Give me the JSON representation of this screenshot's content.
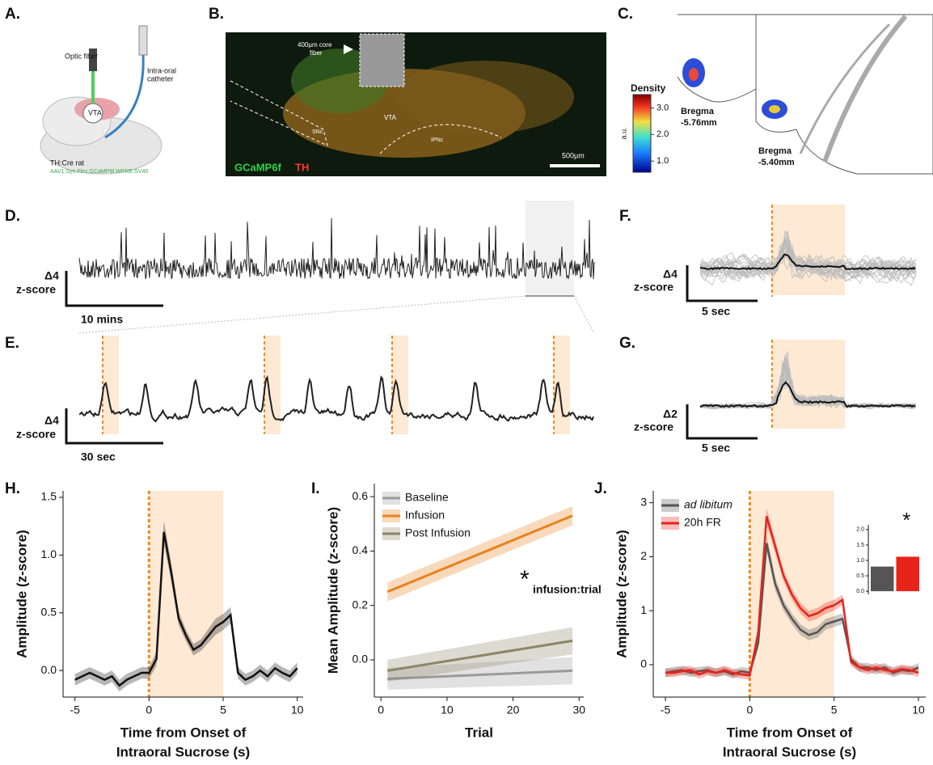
{
  "panels": {
    "A": {
      "label": "A.",
      "optic_fiber": "Optic fiber",
      "catheter": [
        "Intra-oral",
        "catheter"
      ],
      "region": "VTA",
      "rat": "TH:Cre rat",
      "virus": "AAV1.Syn.Flex.GCaMP6f.WPRE.SV40"
    },
    "B": {
      "label": "B.",
      "fiber": [
        "400µm core",
        "fiber"
      ],
      "vta": "VTA",
      "snc": "SNc",
      "ipn": "IPNc",
      "scale": "500µm",
      "stain1": "GCaMP6f",
      "stain2": "TH"
    },
    "C": {
      "label": "C.",
      "colorbar_title": "Density",
      "colorbar_unit": "a.u.",
      "colorbar_lim": [
        0.58,
        3.5
      ],
      "colorbar_ticks": [
        {
          "value": 1,
          "label": "1.0"
        },
        {
          "value": 2,
          "label": "2.0"
        },
        {
          "value": 3,
          "label": "3.0"
        }
      ],
      "sections": [
        [
          "Bregma",
          "-5.76mm"
        ],
        [
          "Bregma",
          "-5.40mm"
        ]
      ]
    },
    "D": {
      "label": "D.",
      "ybar": [
        "Δ4",
        "z-score"
      ],
      "xbar": "10 mins"
    },
    "E": {
      "label": "E.",
      "ybar": [
        "Δ4",
        "z-score"
      ],
      "xbar": "30 sec"
    },
    "F": {
      "label": "F.",
      "ybar": [
        "Δ4",
        "z-score"
      ],
      "xbar": "5 sec"
    },
    "G": {
      "label": "G.",
      "ybar": [
        "Δ2",
        "z-score"
      ],
      "xbar": "5 sec"
    }
  },
  "chart_data": [
    {
      "type": "line",
      "title": "H.",
      "ylabel": "Amplitude (z-score)",
      "xlabel": [
        "Time from Onset of",
        "Intraoral Sucrose (s)"
      ],
      "xlim": [
        -5.8,
        10.4
      ],
      "ylim": [
        -0.23,
        1.556
      ],
      "xticks": [
        -5,
        0,
        5,
        10
      ],
      "yticks": [
        {
          "value": 0,
          "label": "0.0"
        },
        0.5,
        {
          "value": 1,
          "label": "1.0"
        },
        1.5
      ],
      "shade": [
        0,
        5
      ],
      "vline": 0,
      "x": [
        -5,
        -4.5,
        -4,
        -3.5,
        -3,
        -2.5,
        -2,
        -1.5,
        -1,
        -0.5,
        0,
        0.5,
        1,
        1.5,
        2,
        2.5,
        3,
        3.5,
        4,
        4.5,
        5,
        5.5,
        6,
        6.5,
        7,
        7.5,
        8,
        8.5,
        9,
        9.5,
        10
      ],
      "series": [
        {
          "color": "#111111",
          "values": [
            -0.08,
            -0.05,
            -0.02,
            -0.05,
            -0.08,
            -0.05,
            -0.13,
            -0.08,
            -0.05,
            -0.02,
            -0.02,
            0.1,
            1.2,
            0.85,
            0.45,
            0.3,
            0.18,
            0.22,
            0.3,
            0.38,
            0.42,
            0.48,
            -0.02,
            -0.08,
            -0.05,
            0.0,
            -0.05,
            0.02,
            -0.02,
            -0.05,
            0.02
          ],
          "error": [
            0.05,
            0.05,
            0.05,
            0.05,
            0.05,
            0.05,
            0.05,
            0.05,
            0.05,
            0.05,
            0.05,
            0.06,
            0.1,
            0.08,
            0.06,
            0.05,
            0.05,
            0.05,
            0.06,
            0.07,
            0.07,
            0.07,
            0.05,
            0.05,
            0.05,
            0.05,
            0.05,
            0.05,
            0.05,
            0.05,
            0.05
          ]
        }
      ]
    },
    {
      "type": "line",
      "title": "I.",
      "ylabel": "Mean Amplitude (z-score)",
      "xlabel": [
        "Trial"
      ],
      "xlim": [
        -1,
        30.7
      ],
      "ylim": [
        -0.137,
        0.648
      ],
      "xticks": [
        0,
        10,
        20,
        30
      ],
      "yticks": [
        {
          "value": 0,
          "label": "0.0"
        },
        0.2,
        0.4,
        0.6
      ],
      "legend": "upper left",
      "annotation": [
        "*",
        "infusion:trial"
      ],
      "x": [
        1,
        29
      ],
      "series": [
        {
          "name": "Baseline",
          "color": "#9a9a9a",
          "values": [
            -0.07,
            -0.04
          ],
          "error": [
            0.04,
            0.05
          ]
        },
        {
          "name": "Infusion",
          "color": "#e8821e",
          "values": [
            0.25,
            0.53
          ],
          "error": [
            0.035,
            0.035
          ]
        },
        {
          "name": "Post Infusion",
          "color": "#8c8567",
          "values": [
            -0.04,
            0.07
          ],
          "error": [
            0.04,
            0.05
          ]
        }
      ]
    },
    {
      "type": "line",
      "title": "J.",
      "ylabel": "Amplitude (z-score)",
      "xlabel": [
        "Time from Onset of",
        "Intraoral Sucrose (s)"
      ],
      "xlim": [
        -5.72,
        10.43
      ],
      "ylim": [
        -0.6,
        3.22
      ],
      "xticks": [
        -5,
        0,
        5,
        10
      ],
      "yticks": [
        0,
        1,
        2,
        3
      ],
      "shade": [
        0,
        5
      ],
      "vline": 0,
      "legend": "upper left",
      "x": [
        -5,
        -4.5,
        -4,
        -3.5,
        -3,
        -2.5,
        -2,
        -1.5,
        -1,
        -0.5,
        0,
        0.5,
        1,
        1.5,
        2,
        2.5,
        3,
        3.5,
        4,
        4.5,
        5,
        5.5,
        6,
        6.5,
        7,
        7.5,
        8,
        8.5,
        9,
        9.5,
        10
      ],
      "series": [
        {
          "name": "ad libitum",
          "color": "#555555",
          "values": [
            -0.15,
            -0.12,
            -0.1,
            -0.15,
            -0.12,
            -0.1,
            -0.15,
            -0.12,
            -0.18,
            -0.12,
            -0.15,
            0.4,
            2.25,
            1.5,
            1.1,
            0.85,
            0.65,
            0.55,
            0.6,
            0.75,
            0.8,
            0.85,
            0.1,
            -0.05,
            -0.05,
            -0.1,
            -0.05,
            -0.15,
            -0.1,
            -0.12,
            -0.05
          ],
          "error": [
            0.08,
            0.08,
            0.08,
            0.08,
            0.08,
            0.08,
            0.08,
            0.08,
            0.08,
            0.08,
            0.08,
            0.1,
            0.15,
            0.12,
            0.1,
            0.1,
            0.1,
            0.1,
            0.1,
            0.1,
            0.1,
            0.1,
            0.08,
            0.08,
            0.08,
            0.08,
            0.08,
            0.08,
            0.08,
            0.08,
            0.08
          ]
        },
        {
          "name": "20h FR",
          "color": "#e8231a",
          "values": [
            -0.15,
            -0.15,
            -0.12,
            -0.1,
            -0.18,
            -0.12,
            -0.15,
            -0.1,
            -0.15,
            -0.18,
            -0.2,
            0.6,
            2.75,
            2.2,
            1.65,
            1.3,
            1.05,
            0.9,
            0.95,
            1.05,
            1.1,
            1.2,
            0.05,
            -0.05,
            -0.1,
            -0.05,
            -0.1,
            -0.12,
            -0.08,
            -0.1,
            -0.15
          ],
          "error": [
            0.08,
            0.08,
            0.08,
            0.08,
            0.08,
            0.08,
            0.08,
            0.08,
            0.08,
            0.08,
            0.08,
            0.1,
            0.15,
            0.12,
            0.1,
            0.1,
            0.1,
            0.1,
            0.1,
            0.1,
            0.1,
            0.1,
            0.08,
            0.08,
            0.08,
            0.08,
            0.08,
            0.08,
            0.08,
            0.08,
            0.08
          ]
        }
      ],
      "inset": {
        "type": "bar",
        "values": [
          0.8,
          1.12
        ],
        "colors": [
          "#555555",
          "#e8231a"
        ],
        "annotation": "*",
        "ylim": [
          -0.05,
          2.05
        ],
        "yticks": [
          {
            "value": 0,
            "label": "0.0"
          },
          0.5,
          {
            "value": 1,
            "label": "1.0"
          },
          1.5,
          {
            "value": 2,
            "label": "2.0"
          }
        ]
      }
    }
  ]
}
